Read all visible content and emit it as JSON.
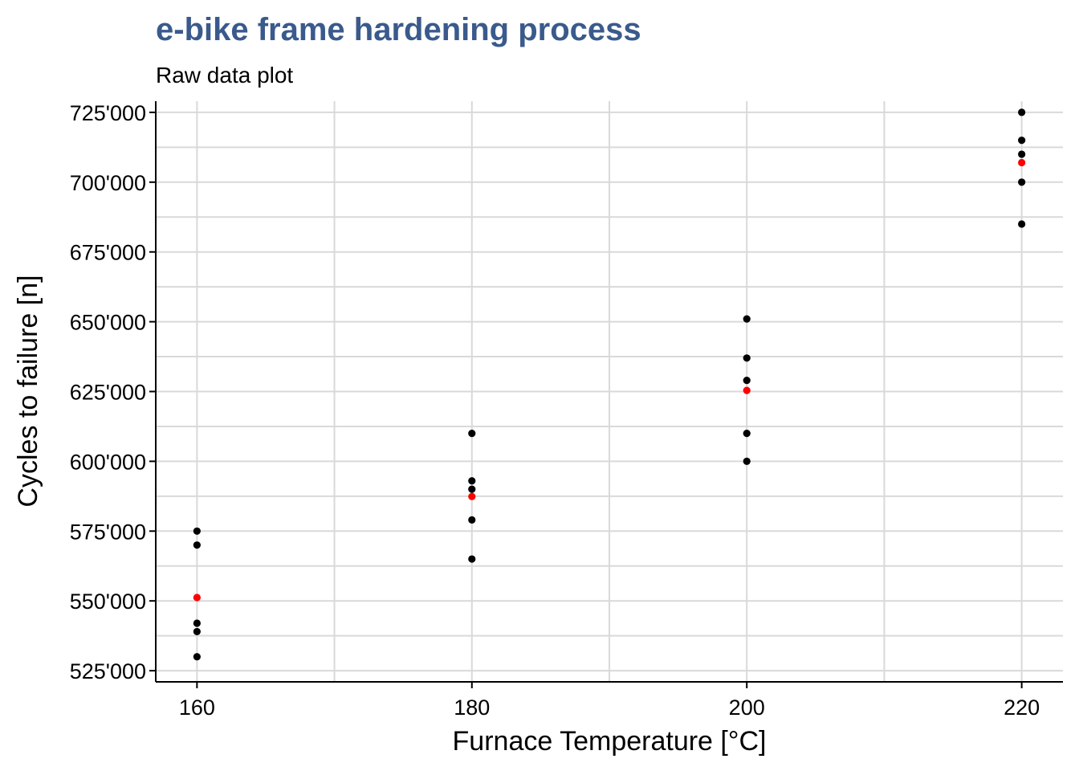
{
  "chart_data": {
    "type": "scatter",
    "title": "e-bike frame hardening process",
    "subtitle": "Raw data plot",
    "xlabel": "Furnace Temperature [°C]",
    "ylabel": "Cycles to failure [n]",
    "xlim": [
      157,
      223
    ],
    "ylim": [
      521000,
      729000
    ],
    "x_ticks": [
      160,
      180,
      200,
      220
    ],
    "x_tick_labels": [
      "160",
      "180",
      "200",
      "220"
    ],
    "x_minor_ticks": [
      170,
      190,
      210
    ],
    "y_ticks": [
      525000,
      550000,
      575000,
      600000,
      625000,
      650000,
      675000,
      700000,
      725000
    ],
    "y_tick_labels": [
      "525'000",
      "550'000",
      "575'000",
      "600'000",
      "625'000",
      "650'000",
      "675'000",
      "700'000",
      "725'000"
    ],
    "y_minor_ticks": [
      537500,
      562500,
      587500,
      612500,
      637500,
      662500,
      687500,
      712500
    ],
    "grid": true,
    "title_color": "#3a5a8c",
    "grid_color": "#d9d9d9",
    "series": [
      {
        "color": "#000000",
        "points": [
          {
            "x": 160,
            "y": 575000
          },
          {
            "x": 160,
            "y": 570000
          },
          {
            "x": 160,
            "y": 542000
          },
          {
            "x": 160,
            "y": 539000
          },
          {
            "x": 160,
            "y": 530000
          },
          {
            "x": 180,
            "y": 610000
          },
          {
            "x": 180,
            "y": 593000
          },
          {
            "x": 180,
            "y": 590000
          },
          {
            "x": 180,
            "y": 579000
          },
          {
            "x": 180,
            "y": 565000
          },
          {
            "x": 200,
            "y": 651000
          },
          {
            "x": 200,
            "y": 637000
          },
          {
            "x": 200,
            "y": 629000
          },
          {
            "x": 200,
            "y": 610000
          },
          {
            "x": 200,
            "y": 600000
          },
          {
            "x": 220,
            "y": 725000
          },
          {
            "x": 220,
            "y": 715000
          },
          {
            "x": 220,
            "y": 710000
          },
          {
            "x": 220,
            "y": 700000
          },
          {
            "x": 220,
            "y": 685000
          }
        ]
      },
      {
        "color": "#ff0000",
        "points": [
          {
            "x": 160,
            "y": 551200
          },
          {
            "x": 180,
            "y": 587400
          },
          {
            "x": 200,
            "y": 625400
          },
          {
            "x": 220,
            "y": 707000
          }
        ]
      }
    ]
  }
}
